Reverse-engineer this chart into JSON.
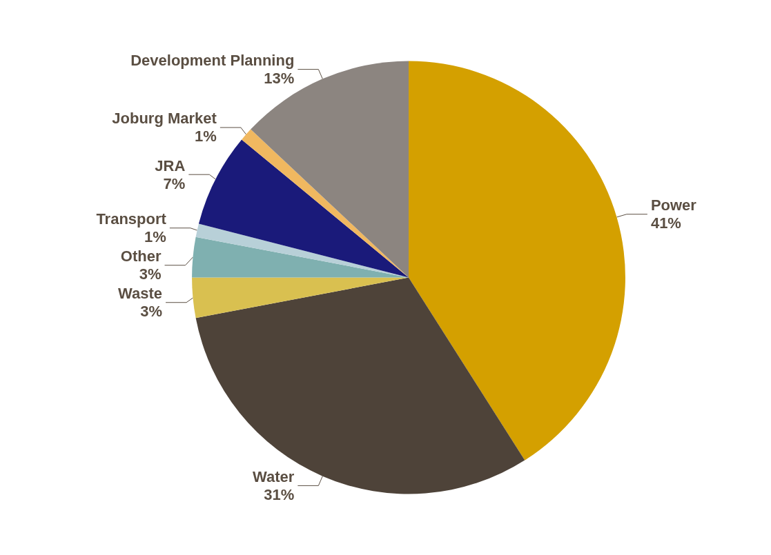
{
  "chart_data": {
    "type": "pie",
    "categories": [
      "Power",
      "Water",
      "Waste",
      "Other",
      "Transport",
      "JRA",
      "Joburg Market",
      "Development Planning"
    ],
    "values": [
      41,
      31,
      3,
      3,
      1,
      7,
      1,
      13
    ],
    "colors": [
      "#d4a000",
      "#4e4339",
      "#d9c050",
      "#7fb0b0",
      "#b8d0d8",
      "#1a1a7a",
      "#f0b860",
      "#8c8580"
    ],
    "value_labels": [
      "41%",
      "31%",
      "3%",
      "3%",
      "1%",
      "7%",
      "1%",
      "13%"
    ],
    "legend": false
  }
}
